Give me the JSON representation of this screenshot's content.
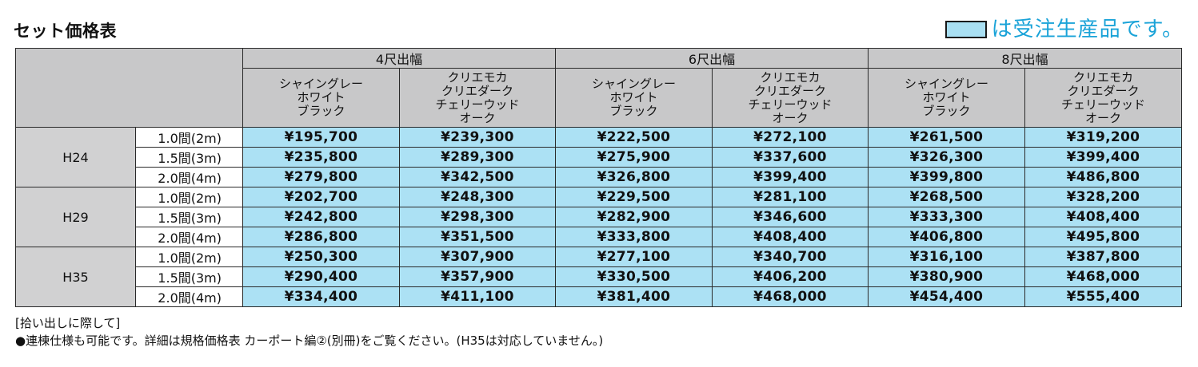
{
  "header": {
    "title": "セット価格表",
    "legend_text": "は受注生産品です。"
  },
  "colors": {
    "made_to_order_fill": "#ace1f4",
    "header_fill": "#c8c8c9",
    "legend_text": "#1aa3d8"
  },
  "table": {
    "groups": [
      "4尺出幅",
      "6尺出幅",
      "8尺出幅"
    ],
    "variants": [
      [
        "シャイングレー",
        "ホワイト",
        "ブラック"
      ],
      [
        "クリエモカ",
        "クリエダーク",
        "チェリーウッド",
        "オーク"
      ]
    ],
    "heights": [
      {
        "label": "H24",
        "rows": [
          {
            "span": "1.0間(2m)",
            "prices": [
              "¥195,700",
              "¥239,300",
              "¥222,500",
              "¥272,100",
              "¥261,500",
              "¥319,200"
            ]
          },
          {
            "span": "1.5間(3m)",
            "prices": [
              "¥235,800",
              "¥289,300",
              "¥275,900",
              "¥337,600",
              "¥326,300",
              "¥399,400"
            ]
          },
          {
            "span": "2.0間(4m)",
            "prices": [
              "¥279,800",
              "¥342,500",
              "¥326,800",
              "¥399,400",
              "¥399,800",
              "¥486,800"
            ]
          }
        ]
      },
      {
        "label": "H29",
        "rows": [
          {
            "span": "1.0間(2m)",
            "prices": [
              "¥202,700",
              "¥248,300",
              "¥229,500",
              "¥281,100",
              "¥268,500",
              "¥328,200"
            ]
          },
          {
            "span": "1.5間(3m)",
            "prices": [
              "¥242,800",
              "¥298,300",
              "¥282,900",
              "¥346,600",
              "¥333,300",
              "¥408,400"
            ]
          },
          {
            "span": "2.0間(4m)",
            "prices": [
              "¥286,800",
              "¥351,500",
              "¥333,800",
              "¥408,400",
              "¥406,800",
              "¥495,800"
            ]
          }
        ]
      },
      {
        "label": "H35",
        "rows": [
          {
            "span": "1.0間(2m)",
            "prices": [
              "¥250,300",
              "¥307,900",
              "¥277,100",
              "¥340,700",
              "¥316,100",
              "¥387,800"
            ]
          },
          {
            "span": "1.5間(3m)",
            "prices": [
              "¥290,400",
              "¥357,900",
              "¥330,500",
              "¥406,200",
              "¥380,900",
              "¥468,000"
            ]
          },
          {
            "span": "2.0間(4m)",
            "prices": [
              "¥334,400",
              "¥411,100",
              "¥381,400",
              "¥468,000",
              "¥454,400",
              "¥555,400"
            ]
          }
        ]
      }
    ]
  },
  "notes": {
    "heading": "[拾い出しに際して]",
    "line1": "●連棟仕様も可能です。詳細は規格価格表 カーポート編②(別冊)をご覧ください。(H35は対応していません。)"
  }
}
